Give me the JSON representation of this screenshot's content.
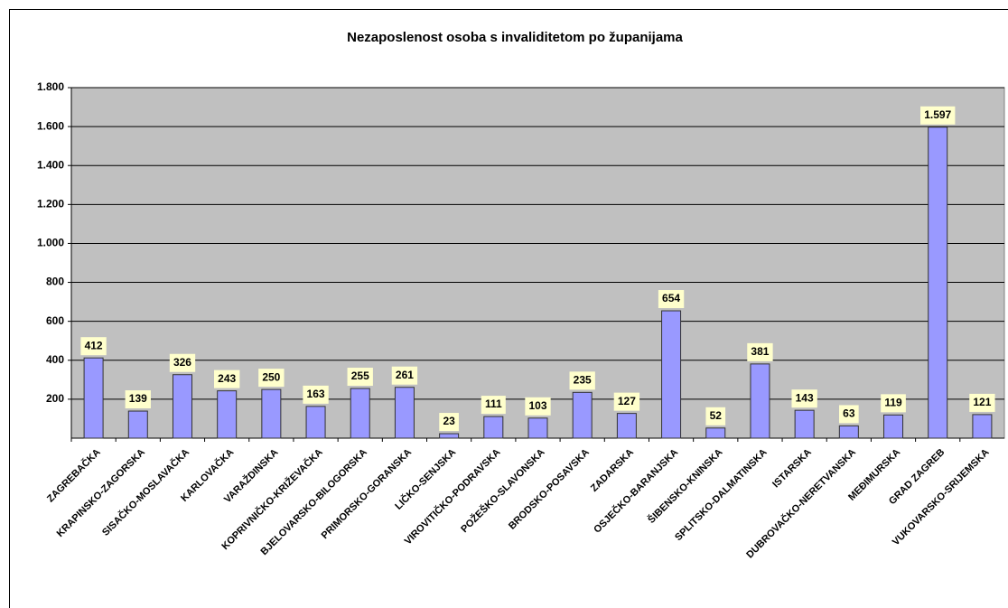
{
  "chart_data": {
    "type": "bar",
    "title": "Nezaposlenost osoba s invaliditetom po županijama",
    "categories": [
      "ZAGREBAČKA",
      "KRAPINSKO-ZAGORSKA",
      "SISAČKO-MOSLAVAČKA",
      "KARLOVAČKA",
      "VARAŽDINSKA",
      "KOPRIVNIČKO-KRIŽEVAČKA",
      "BJELOVARSKO-BILOGORSKA",
      "PRIMORSKO-GORANSKA",
      "LIČKO-SENJSKA",
      "VIROVITIČKO-PODRAVSKA",
      "POŽEŠKO-SLAVONSKA",
      "BRODSKO-POSAVSKA",
      "ZADARSKA",
      "OSJEČKO-BARANJSKA",
      "ŠIBENSKO-KNINSKA",
      "SPLITSKO-DALMATINSKA",
      "ISTARSKA",
      "DUBROVAČKO-NERETVANSKA",
      "MEĐIMURSKA",
      "GRAD ZAGREB",
      "VUKOVARSKO-SRIJEMSKA"
    ],
    "values": [
      412,
      139,
      326,
      243,
      250,
      163,
      255,
      261,
      23,
      111,
      103,
      235,
      127,
      654,
      52,
      381,
      143,
      63,
      119,
      1597,
      121
    ],
    "value_labels": [
      "412",
      "139",
      "326",
      "243",
      "250",
      "163",
      "255",
      "261",
      "23",
      "111",
      "103",
      "235",
      "127",
      "654",
      "52",
      "381",
      "143",
      "63",
      "119",
      "1.597",
      "121"
    ],
    "color": "#9999ff",
    "ylim": [
      0,
      1800
    ],
    "yticks": [
      200,
      400,
      600,
      800,
      {
        "value": 1000,
        "label": "1.000"
      },
      {
        "value": 1200,
        "label": "1.200"
      },
      {
        "value": 1400,
        "label": "1.400"
      },
      {
        "value": 1600,
        "label": "1.600"
      },
      {
        "value": 1800,
        "label": "1.800"
      }
    ],
    "grid": true
  }
}
